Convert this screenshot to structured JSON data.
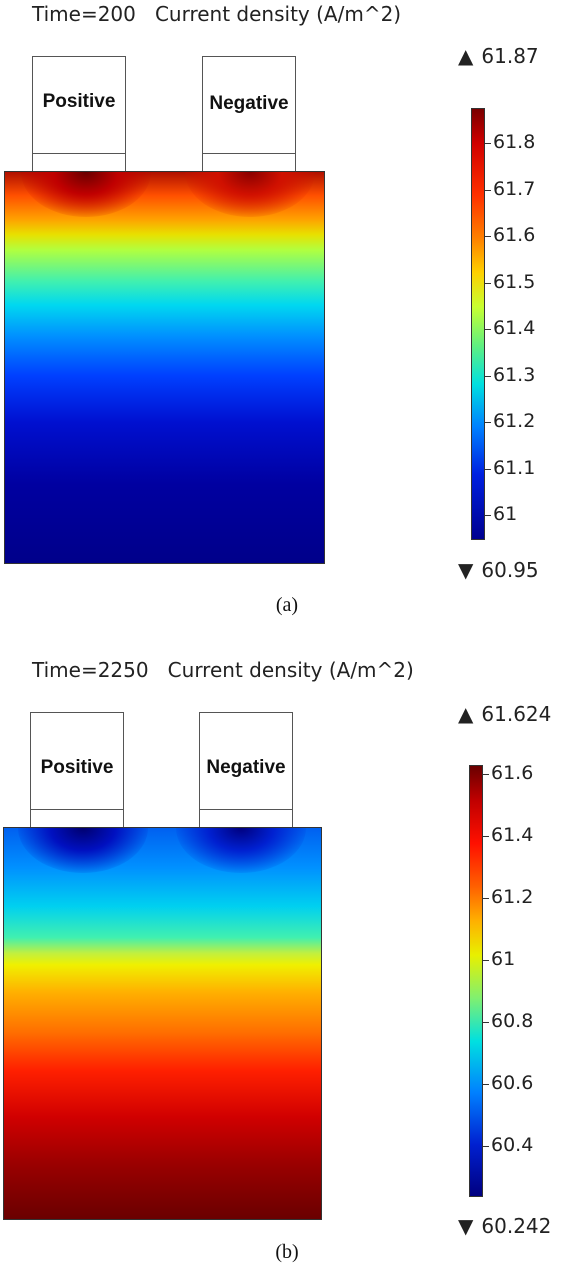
{
  "panels": [
    {
      "title": "Time=200   Current density (A/m^2)",
      "positive_label": "Positive",
      "negative_label": "Negative",
      "max_value": "61.87",
      "min_value": "60.95",
      "ticks": [
        "61.8",
        "61.7",
        "61.6",
        "61.5",
        "61.4",
        "61.3",
        "61.2",
        "61.1",
        "61"
      ],
      "caption": "(a)",
      "colormap": "rainbow (blue → red)",
      "field_description_colors": [
        "#8a0000",
        "#ff2000",
        "#ffa000",
        "#e8e800",
        "#00e0e0",
        "#0060ff",
        "#0000d0",
        "#00008a"
      ]
    },
    {
      "title": "Time=2250   Current density (A/m^2)",
      "positive_label": "Positive",
      "negative_label": "Negative",
      "max_value": "61.624",
      "min_value": "60.242",
      "ticks": [
        "61.6",
        "61.4",
        "61.2",
        "61",
        "60.8",
        "60.6",
        "60.4"
      ],
      "caption": "(b)",
      "colormap": "rainbow (blue → red)",
      "field_description_colors": [
        "#0000a0",
        "#0080ff",
        "#00e0e0",
        "#e8e800",
        "#ff8000",
        "#ff0000",
        "#c00000",
        "#6a0000"
      ]
    }
  ],
  "icons": {
    "max_marker": "triangle-up-icon",
    "min_marker": "triangle-down-icon"
  }
}
